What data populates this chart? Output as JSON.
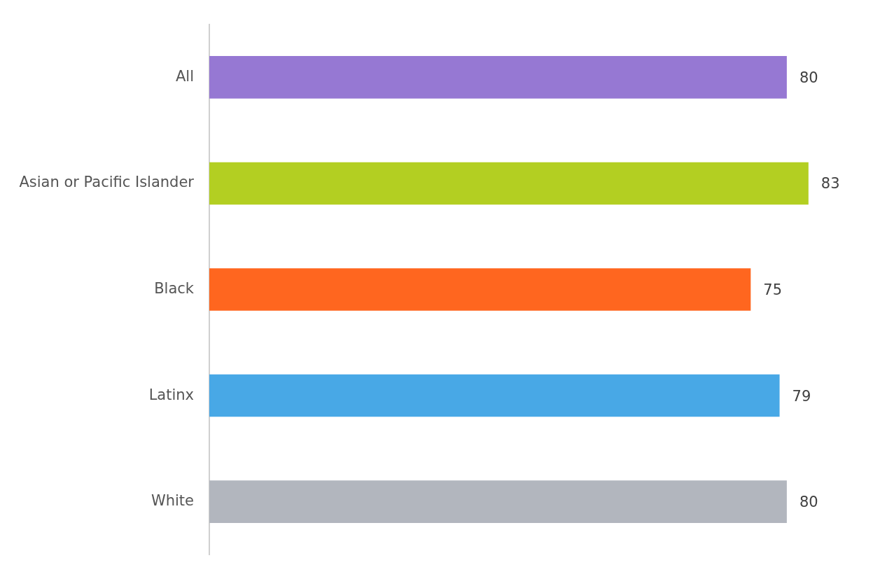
{
  "chart_data": {
    "type": "bar",
    "orientation": "horizontal",
    "categories": [
      "All",
      "Asian or Pacific Islander",
      "Black",
      "Latinx",
      "White"
    ],
    "values": [
      80,
      83,
      75,
      79,
      80
    ],
    "colors": [
      "#9678d3",
      "#b3cf22",
      "#ff661f",
      "#48a8e6",
      "#b2b6be"
    ],
    "data_labels": true,
    "tick_labels": "y"
  }
}
